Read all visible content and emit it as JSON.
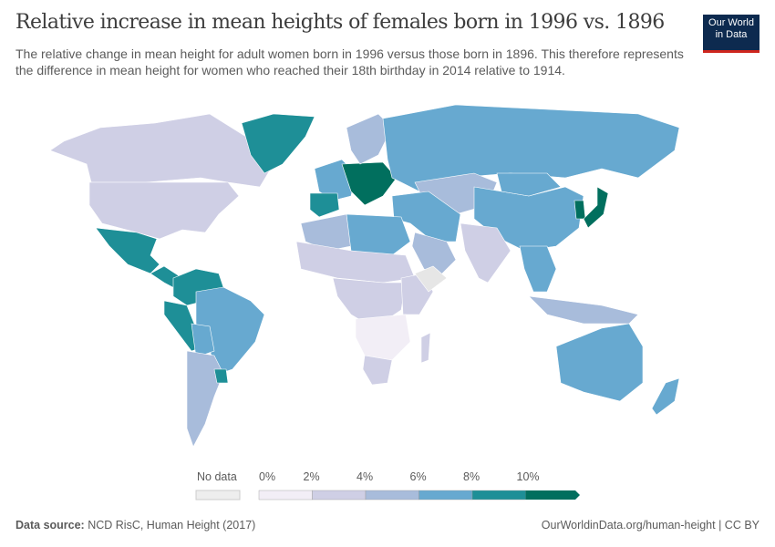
{
  "header": {
    "title": "Relative increase in mean heights of females born in 1996 vs. 1896",
    "subtitle": "The relative change in mean height for adult women born in 1996 versus those born in 1896. This therefore represents the difference in mean height for women who reached their 18th birthday in 2014 relative to 1914.",
    "logo_line1": "Our World",
    "logo_line2": "in Data"
  },
  "chart_data": {
    "type": "choropleth",
    "unit": "%",
    "legend": {
      "no_data_label": "No data",
      "ticks": [
        "0%",
        "2%",
        "4%",
        "6%",
        "8%",
        "10%"
      ],
      "bins": [
        {
          "range": [
            0,
            2
          ],
          "color": "#f2eef6"
        },
        {
          "range": [
            2,
            4
          ],
          "color": "#cfcfe5"
        },
        {
          "range": [
            4,
            6
          ],
          "color": "#a8bcdb"
        },
        {
          "range": [
            6,
            8
          ],
          "color": "#67a9d0"
        },
        {
          "range": [
            8,
            10
          ],
          "color": "#1e8f97"
        },
        {
          "range": [
            10,
            null
          ],
          "color": "#016f5e"
        }
      ],
      "no_data_color": "#e6e6e6"
    },
    "regions": [
      {
        "name": "Canada",
        "bin": 1
      },
      {
        "name": "United States",
        "bin": 1
      },
      {
        "name": "Greenland",
        "bin": 4
      },
      {
        "name": "Mexico",
        "bin": 4
      },
      {
        "name": "Central America",
        "bin": 4
      },
      {
        "name": "Colombia/Venezuela",
        "bin": 4
      },
      {
        "name": "Peru/Ecuador",
        "bin": 4
      },
      {
        "name": "Brazil",
        "bin": 3
      },
      {
        "name": "Bolivia",
        "bin": 3
      },
      {
        "name": "Argentina/Chile",
        "bin": 2
      },
      {
        "name": "Uruguay",
        "bin": 4
      },
      {
        "name": "Western Europe",
        "bin": 3
      },
      {
        "name": "Spain",
        "bin": 4
      },
      {
        "name": "Central Europe",
        "bin": 5
      },
      {
        "name": "Scandinavia",
        "bin": 2
      },
      {
        "name": "Russia",
        "bin": 3
      },
      {
        "name": "Kazakhstan/Central Asia",
        "bin": 2
      },
      {
        "name": "China",
        "bin": 3
      },
      {
        "name": "Mongolia",
        "bin": 3
      },
      {
        "name": "Korea",
        "bin": 5
      },
      {
        "name": "Japan",
        "bin": 5
      },
      {
        "name": "India",
        "bin": 1
      },
      {
        "name": "Middle East",
        "bin": 3
      },
      {
        "name": "Arabia",
        "bin": 2
      },
      {
        "name": "North Africa",
        "bin": 2
      },
      {
        "name": "Libya/Egypt",
        "bin": 3
      },
      {
        "name": "Sahel",
        "bin": 1
      },
      {
        "name": "Central Africa",
        "bin": 1
      },
      {
        "name": "East Africa",
        "bin": 1
      },
      {
        "name": "Southern Africa",
        "bin": 0
      },
      {
        "name": "South Africa",
        "bin": 1
      },
      {
        "name": "Madagascar",
        "bin": 1
      },
      {
        "name": "Southeast Asia",
        "bin": 3
      },
      {
        "name": "Indonesia",
        "bin": 2
      },
      {
        "name": "Australia",
        "bin": 3
      },
      {
        "name": "New Zealand",
        "bin": 3
      },
      {
        "name": "Ethiopia/Somalia",
        "bin": -1
      }
    ]
  },
  "footer": {
    "source_label": "Data source:",
    "source": "NCD RisC, Human Height (2017)",
    "credit": "OurWorldinData.org/human-height | CC BY"
  }
}
